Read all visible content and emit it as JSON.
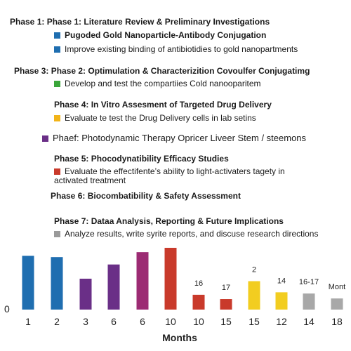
{
  "legend": [
    {
      "heading": "Phase 1:  Phase 1: Literature Review & Preliminary Investigations",
      "items": [
        {
          "text": "Pugoded  Gold  Nanoparticle-Antibody Conjugation",
          "color": "#1f6eb0"
        },
        {
          "text": "Improve existing binding of antibiotidies to gold  nanopartments",
          "color": "#1f6eb0"
        }
      ]
    },
    {
      "heading": "Phase 3: Phase 2: Optimulation & Characterizition Covoulfer Conjugatimg",
      "items": [
        {
          "text": "Develop and test the compartiies Cold nanooparitem",
          "color": "#3aa63a"
        }
      ]
    },
    {
      "heading": "Phase 4: In Vitro Assesment of Targeted Drug Delivery",
      "items": [
        {
          "text": "Evaluate te test the Drug Delivery cells in lab setins",
          "color": "#f2b418"
        }
      ]
    },
    {
      "heading": "",
      "items": [
        {
          "text": "Phaef:  Photodynamic Therapy Opricer Liveer Stem  / steemons",
          "color": "#6a2f87"
        }
      ]
    },
    {
      "heading": "Phase 5: Phocodynatibility Efficacy Studies",
      "items": [
        {
          "text": "Evaluate the effectifente’s ability  to light-activaters tagety in activated treatment",
          "color": "#c93a2b"
        }
      ]
    },
    {
      "heading": "Phase 6: Biocombatibility & Safety Assessment",
      "items": []
    },
    {
      "heading": "Phase 7: Dataa Analysis, Reporting & Future Implications",
      "items": [
        {
          "text": "Analyze results, write syrite reports, and discuse research directions",
          "color": "#9a9a9a"
        }
      ]
    }
  ],
  "chart_data": {
    "type": "bar",
    "categories": [
      "1",
      "2",
      "3",
      "6",
      "6",
      "10",
      "10",
      "15",
      "15",
      "12",
      "14",
      "18"
    ],
    "values": [
      87,
      85,
      50,
      73,
      93,
      100,
      24,
      17,
      46,
      28,
      26,
      18
    ],
    "colors": [
      "#1f6eb0",
      "#1f6eb0",
      "#6a2f87",
      "#6a2f87",
      "#9c2b73",
      "#c93a2b",
      "#c93a2b",
      "#c93a2b",
      "#f2cd20",
      "#f2cd20",
      "#a8a8a8",
      "#a8a8a8"
    ],
    "data_labels": [
      "",
      "",
      "",
      "",
      "",
      "",
      "16",
      "17",
      "2",
      "14",
      "16-17",
      "Mont"
    ],
    "xlabel": "Months",
    "y_tick_label": "0",
    "ylim": [
      0,
      100
    ],
    "grid": false
  }
}
